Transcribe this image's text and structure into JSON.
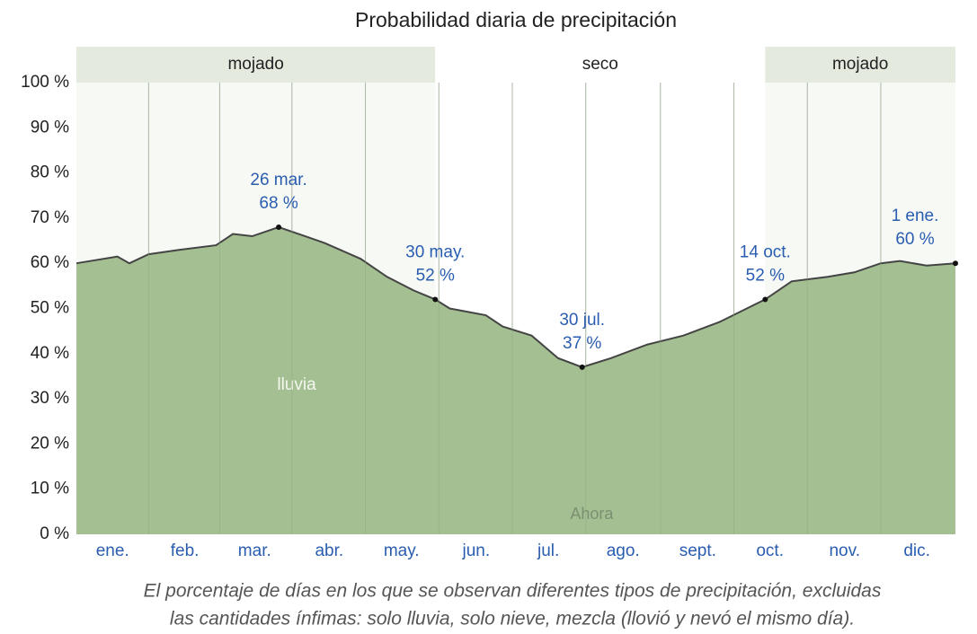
{
  "chart_data": {
    "type": "area",
    "title": "Probabilidad diaria de precipitación",
    "xlim": [
      1,
      366
    ],
    "ylim": [
      0,
      100
    ],
    "xticks": [
      {
        "value": 16,
        "label": "ene."
      },
      {
        "value": 46,
        "label": "feb."
      },
      {
        "value": 75,
        "label": "mar."
      },
      {
        "value": 106,
        "label": "abr."
      },
      {
        "value": 136,
        "label": "may."
      },
      {
        "value": 167,
        "label": "jun."
      },
      {
        "value": 197,
        "label": "jul."
      },
      {
        "value": 228,
        "label": "ago."
      },
      {
        "value": 259,
        "label": "sept."
      },
      {
        "value": 289,
        "label": "oct."
      },
      {
        "value": 320,
        "label": "nov."
      },
      {
        "value": 350,
        "label": "dic."
      }
    ],
    "yticks": [
      {
        "value": 0,
        "label": "0 %"
      },
      {
        "value": 10,
        "label": "10 %"
      },
      {
        "value": 20,
        "label": "20 %"
      },
      {
        "value": 30,
        "label": "30 %"
      },
      {
        "value": 40,
        "label": "40 %"
      },
      {
        "value": 50,
        "label": "50 %"
      },
      {
        "value": 60,
        "label": "60 %"
      },
      {
        "value": 70,
        "label": "70 %"
      },
      {
        "value": 80,
        "label": "80 %"
      },
      {
        "value": 90,
        "label": "90 %"
      },
      {
        "value": 100,
        "label": "100 %"
      }
    ],
    "bands": [
      {
        "label": "mojado",
        "start": 1,
        "end": 150,
        "color": "#e4eade"
      },
      {
        "label": "seco",
        "start": 150,
        "end": 287,
        "color": "#ffffff"
      },
      {
        "label": "mojado",
        "start": 287,
        "end": 366,
        "color": "#e4eade"
      }
    ],
    "series": [
      {
        "name": "lluvia",
        "color": "#a4c092",
        "line_color": "#444444",
        "x": [
          1,
          18,
          23,
          31,
          44,
          59,
          66,
          74,
          85,
          96,
          104,
          119,
          130,
          141,
          150,
          156,
          171,
          178,
          190,
          201,
          211,
          223,
          238,
          253,
          268,
          287,
          298,
          313,
          324,
          335,
          343,
          354,
          366
        ],
        "values": [
          60,
          61.5,
          60,
          62,
          63,
          64,
          66.5,
          66,
          68,
          66,
          64.5,
          61,
          57,
          54,
          52,
          50,
          48.5,
          46,
          44,
          39,
          37,
          39,
          42,
          44,
          47,
          52,
          56,
          57,
          58,
          60,
          60.5,
          59.5,
          60
        ]
      }
    ],
    "annotations": [
      {
        "date": "26 mar.",
        "label": "68 %",
        "x": 85,
        "value": 68
      },
      {
        "date": "30 may.",
        "label": "52 %",
        "x": 150,
        "value": 52
      },
      {
        "date": "30 jul.",
        "label": "37 %",
        "x": 211,
        "value": 37
      },
      {
        "date": "14 oct.",
        "label": "52 %",
        "x": 287,
        "value": 52
      },
      {
        "date": "1 ene.",
        "label": "60 %",
        "x": 366,
        "value": 60
      }
    ],
    "now": {
      "label": "Ahora",
      "x": 215
    },
    "caption": [
      "El porcentaje de días en los que se observan diferentes tipos de precipitación, excluidas",
      "las cantidades ínfimas: solo lluvia, solo nieve, mezcla (llovió y nevó el mismo día)."
    ]
  }
}
